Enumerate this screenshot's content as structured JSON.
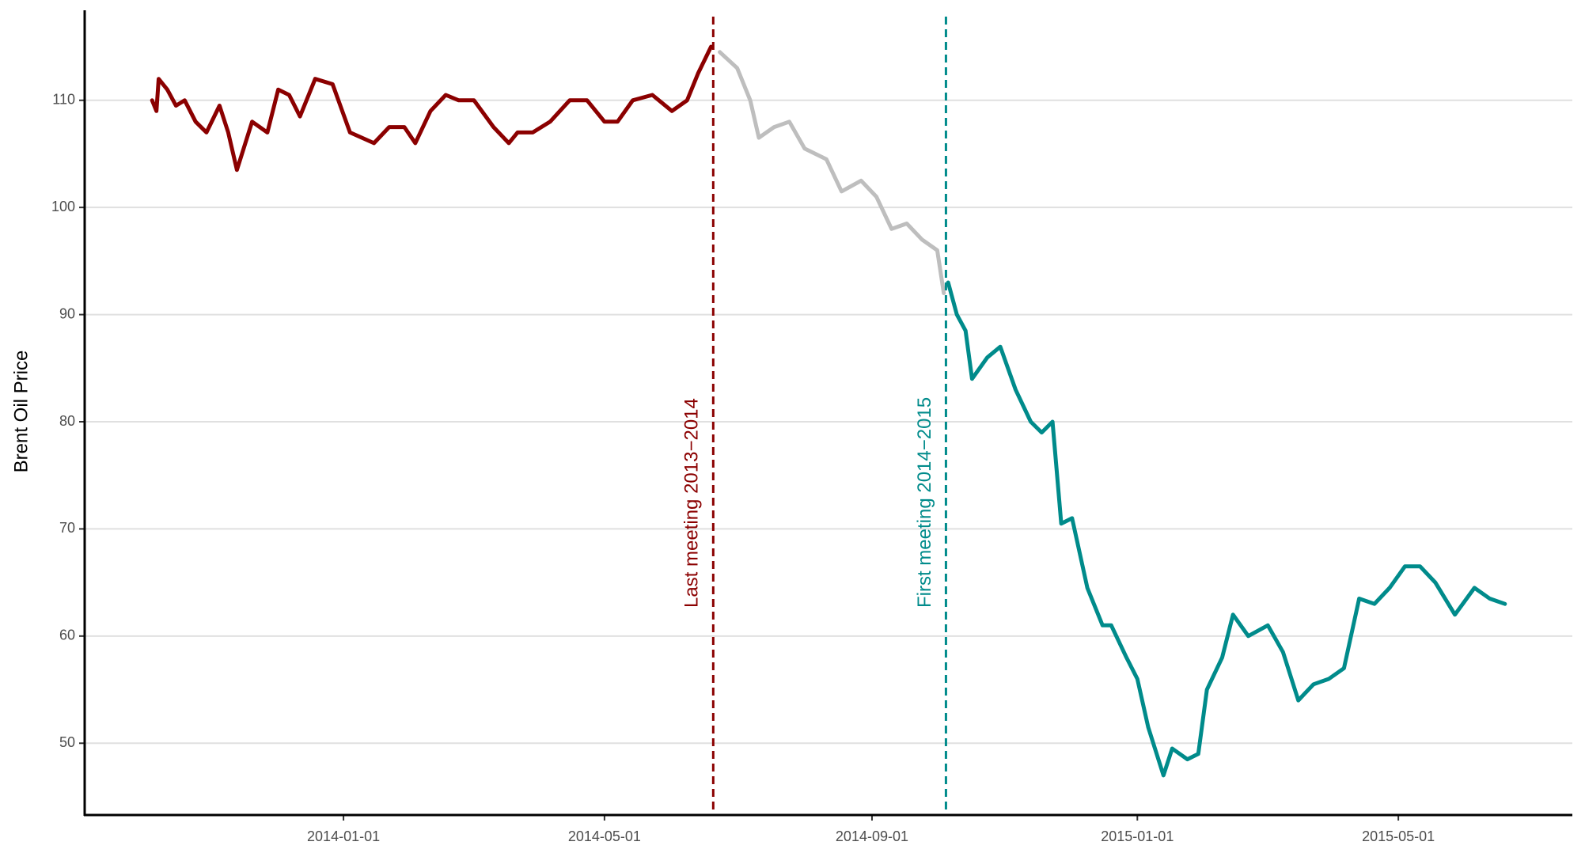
{
  "chart_data": {
    "type": "line",
    "y_label": "Brent Oil Price",
    "xlim": [
      "2013-09-04",
      "2015-07-20"
    ],
    "xticks": [
      "2014-01-01",
      "2014-05-01",
      "2014-09-01",
      "2015-01-01",
      "2015-05-01"
    ],
    "ylim": [
      43.3,
      118.4
    ],
    "yticks": [
      50,
      60,
      70,
      80,
      90,
      100,
      110
    ],
    "grid": true,
    "series": [
      {
        "color": "#8b0000",
        "x": [
          "2013-10-05",
          "2013-10-07",
          "2013-10-08",
          "2013-10-12",
          "2013-10-16",
          "2013-10-20",
          "2013-10-25",
          "2013-10-30",
          "2013-11-05",
          "2013-11-09",
          "2013-11-13",
          "2013-11-20",
          "2013-11-27",
          "2013-12-02",
          "2013-12-07",
          "2013-12-12",
          "2013-12-19",
          "2013-12-27",
          "2014-01-04",
          "2014-01-15",
          "2014-01-22",
          "2014-01-29",
          "2014-02-03",
          "2014-02-10",
          "2014-02-17",
          "2014-02-23",
          "2014-03-02",
          "2014-03-11",
          "2014-03-18",
          "2014-03-22",
          "2014-03-29",
          "2014-04-06",
          "2014-04-15",
          "2014-04-23",
          "2014-05-01",
          "2014-05-07",
          "2014-05-14",
          "2014-05-23",
          "2014-06-01",
          "2014-06-08",
          "2014-06-13",
          "2014-06-19"
        ],
        "values": [
          110,
          109,
          112,
          111,
          109.5,
          110,
          108,
          107,
          109.5,
          107,
          103.5,
          108,
          107,
          111,
          110.5,
          108.5,
          112,
          111.5,
          107,
          106,
          107.5,
          107.5,
          106,
          109,
          110.5,
          110,
          110,
          107.5,
          106,
          107,
          107,
          108,
          110,
          110,
          108,
          108,
          110,
          110.5,
          109,
          110,
          112.5,
          115
        ]
      },
      {
        "color": "#bebebe",
        "x": [
          "2014-06-23",
          "2014-07-01",
          "2014-07-07",
          "2014-07-11",
          "2014-07-18",
          "2014-07-25",
          "2014-08-01",
          "2014-08-11",
          "2014-08-18",
          "2014-08-27",
          "2014-09-03",
          "2014-09-10",
          "2014-09-17",
          "2014-09-24",
          "2014-10-01",
          "2014-10-04"
        ],
        "values": [
          114.5,
          113,
          110,
          106.5,
          107.5,
          108,
          105.5,
          104.5,
          101.5,
          102.5,
          101,
          98,
          98.5,
          97,
          96,
          92
        ]
      },
      {
        "color": "#008b8b",
        "x": [
          "2014-10-06",
          "2014-10-10",
          "2014-10-14",
          "2014-10-17",
          "2014-10-24",
          "2014-10-30",
          "2014-11-06",
          "2014-11-13",
          "2014-11-18",
          "2014-11-23",
          "2014-11-27",
          "2014-12-02",
          "2014-12-09",
          "2014-12-16",
          "2014-12-20",
          "2014-12-27",
          "2015-01-01",
          "2015-01-06",
          "2015-01-13",
          "2015-01-17",
          "2015-01-24",
          "2015-01-29",
          "2015-02-02",
          "2015-02-09",
          "2015-02-14",
          "2015-02-21",
          "2015-03-02",
          "2015-03-09",
          "2015-03-16",
          "2015-03-23",
          "2015-03-30",
          "2015-04-06",
          "2015-04-13",
          "2015-04-20",
          "2015-04-27",
          "2015-05-04",
          "2015-05-11",
          "2015-05-18",
          "2015-05-27",
          "2015-06-05",
          "2015-06-12",
          "2015-06-19"
        ],
        "values": [
          93,
          90,
          88.5,
          84,
          86,
          87,
          83,
          80,
          79,
          80,
          70.5,
          71,
          64.5,
          61,
          61,
          58,
          56,
          51.5,
          47,
          49.5,
          48.5,
          49,
          55,
          58,
          62,
          60,
          61,
          58.5,
          54,
          55.5,
          56,
          57,
          63.5,
          63,
          64.5,
          66.5,
          66.5,
          65,
          62,
          64.5,
          63.5,
          63
        ]
      }
    ],
    "annotations": [
      {
        "x": "2014-06-20",
        "label": "Last meeting 2013−2014",
        "color": "#8b0000"
      },
      {
        "x": "2014-10-05",
        "label": "First meeting 2014−2015",
        "color": "#008b8b"
      }
    ]
  }
}
